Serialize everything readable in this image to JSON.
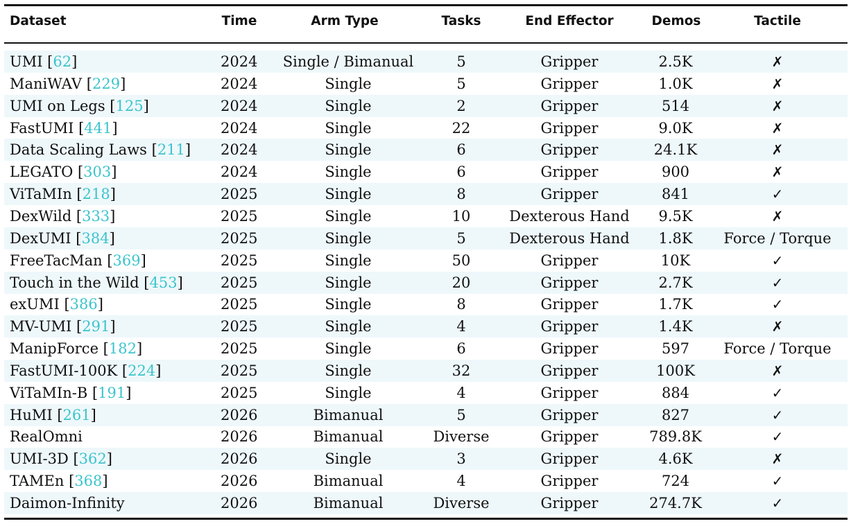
{
  "table": {
    "headers": {
      "dataset": "Dataset",
      "time": "Time",
      "arm_type": "Arm Type",
      "tasks": "Tasks",
      "end_effector": "End Effector",
      "demos": "Demos",
      "tactile": "Tactile"
    },
    "rows": [
      {
        "name": "UMI",
        "cite": "62",
        "time": "2024",
        "arm": "Single / Bimanual",
        "tasks": "5",
        "ee": "Gripper",
        "demos": "2.5K",
        "tactile": "✗"
      },
      {
        "name": "ManiWAV",
        "cite": "229",
        "time": "2024",
        "arm": "Single",
        "tasks": "5",
        "ee": "Gripper",
        "demos": "1.0K",
        "tactile": "✗"
      },
      {
        "name": "UMI on Legs",
        "cite": "125",
        "time": "2024",
        "arm": "Single",
        "tasks": "2",
        "ee": "Gripper",
        "demos": "514",
        "tactile": "✗"
      },
      {
        "name": "FastUMI",
        "cite": "441",
        "time": "2024",
        "arm": "Single",
        "tasks": "22",
        "ee": "Gripper",
        "demos": "9.0K",
        "tactile": "✗"
      },
      {
        "name": "Data Scaling Laws",
        "cite": "211",
        "time": "2024",
        "arm": "Single",
        "tasks": "6",
        "ee": "Gripper",
        "demos": "24.1K",
        "tactile": "✗"
      },
      {
        "name": "LEGATO",
        "cite": "303",
        "time": "2024",
        "arm": "Single",
        "tasks": "6",
        "ee": "Gripper",
        "demos": "900",
        "tactile": "✗"
      },
      {
        "name": "ViTaMIn",
        "cite": "218",
        "time": "2025",
        "arm": "Single",
        "tasks": "8",
        "ee": "Gripper",
        "demos": "841",
        "tactile": "✓"
      },
      {
        "name": "DexWild",
        "cite": "333",
        "time": "2025",
        "arm": "Single",
        "tasks": "10",
        "ee": "Dexterous Hand",
        "demos": "9.5K",
        "tactile": "✗"
      },
      {
        "name": "DexUMI",
        "cite": "384",
        "time": "2025",
        "arm": "Single",
        "tasks": "5",
        "ee": "Dexterous Hand",
        "demos": "1.8K",
        "tactile": "Force / Torque"
      },
      {
        "name": "FreeTacMan",
        "cite": "369",
        "time": "2025",
        "arm": "Single",
        "tasks": "50",
        "ee": "Gripper",
        "demos": "10K",
        "tactile": "✓"
      },
      {
        "name": "Touch in the Wild",
        "cite": "453",
        "time": "2025",
        "arm": "Single",
        "tasks": "20",
        "ee": "Gripper",
        "demos": "2.7K",
        "tactile": "✓"
      },
      {
        "name": "exUMI",
        "cite": "386",
        "time": "2025",
        "arm": "Single",
        "tasks": "8",
        "ee": "Gripper",
        "demos": "1.7K",
        "tactile": "✓"
      },
      {
        "name": "MV-UMI",
        "cite": "291",
        "time": "2025",
        "arm": "Single",
        "tasks": "4",
        "ee": "Gripper",
        "demos": "1.4K",
        "tactile": "✗"
      },
      {
        "name": "ManipForce",
        "cite": "182",
        "time": "2025",
        "arm": "Single",
        "tasks": "6",
        "ee": "Gripper",
        "demos": "597",
        "tactile": "Force / Torque"
      },
      {
        "name": "FastUMI-100K",
        "cite": "224",
        "time": "2025",
        "arm": "Single",
        "tasks": "32",
        "ee": "Gripper",
        "demos": "100K",
        "tactile": "✗"
      },
      {
        "name": "ViTaMIn-B",
        "cite": "191",
        "time": "2025",
        "arm": "Single",
        "tasks": "4",
        "ee": "Gripper",
        "demos": "884",
        "tactile": "✓"
      },
      {
        "name": "HuMI",
        "cite": "261",
        "time": "2026",
        "arm": "Bimanual",
        "tasks": "5",
        "ee": "Gripper",
        "demos": "827",
        "tactile": "✓"
      },
      {
        "name": "RealOmni",
        "cite": "",
        "time": "2026",
        "arm": "Bimanual",
        "tasks": "Diverse",
        "ee": "Gripper",
        "demos": "789.8K",
        "tactile": "✓"
      },
      {
        "name": "UMI-3D",
        "cite": "362",
        "time": "2026",
        "arm": "Single",
        "tasks": "3",
        "ee": "Gripper",
        "demos": "4.6K",
        "tactile": "✗"
      },
      {
        "name": "TAMEn",
        "cite": "368",
        "time": "2026",
        "arm": "Bimanual",
        "tasks": "4",
        "ee": "Gripper",
        "demos": "724",
        "tactile": "✓"
      },
      {
        "name": "Daimon-Infinity",
        "cite": "",
        "time": "2026",
        "arm": "Bimanual",
        "tasks": "Diverse",
        "ee": "Gripper",
        "demos": "274.7K",
        "tactile": "✓"
      }
    ]
  }
}
